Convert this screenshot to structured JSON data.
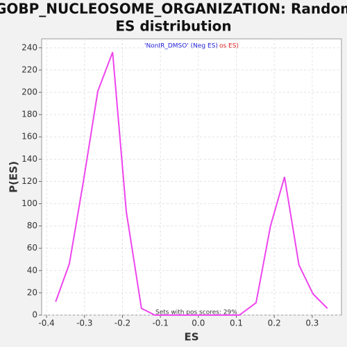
{
  "chart_data": {
    "type": "line",
    "title": "GOBP_NUCLEOSOME_ORGANIZATION: Random ES distribution",
    "title_lines": [
      "GOBP_NUCLEOSOME_ORGANIZATION: Random",
      "ES distribution"
    ],
    "x_label": "ES",
    "y_label": "P(ES)",
    "annotations": [
      "'NonIR_DMSO' (Neg ES)",
      "os ES)",
      "Sets with pos scores: 29%"
    ],
    "x": [
      -0.376,
      -0.34,
      -0.303,
      -0.265,
      -0.226,
      -0.19,
      -0.15,
      -0.115,
      0.108,
      0.152,
      0.19,
      0.227,
      0.265,
      0.302,
      0.34
    ],
    "series": [
      {
        "name": "P(ES)",
        "color": "#ee44ee",
        "values": [
          12,
          46,
          120,
          201,
          236,
          93,
          6,
          0,
          0,
          11,
          80,
          124,
          45,
          19,
          6
        ]
      }
    ],
    "xlim": [
      -0.413,
      0.377
    ],
    "ylim": [
      0,
      248
    ],
    "xticks": [
      -0.4,
      -0.3,
      -0.2,
      -0.1,
      {
        "value": 0,
        "label": "0.0"
      },
      0.1,
      0.2,
      0.3
    ],
    "yticks": [
      0,
      20,
      40,
      60,
      80,
      100,
      120,
      140,
      160,
      180,
      200,
      220,
      240
    ],
    "grid": true
  }
}
